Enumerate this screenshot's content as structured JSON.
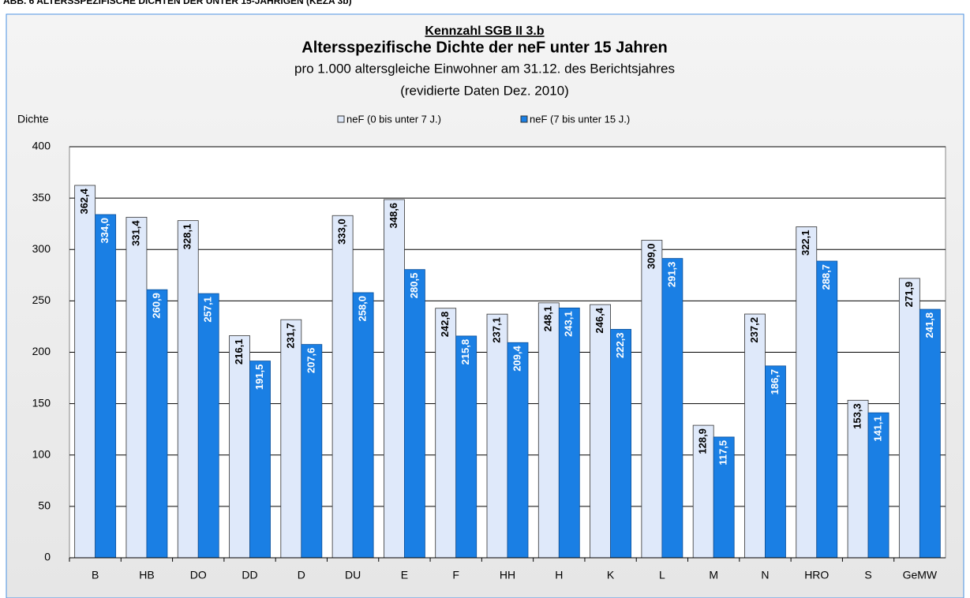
{
  "chart_data": {
    "type": "bar",
    "header": "ABB. 6 ALTERSSPEZIFISCHE DICHTEN DER UNTER 15-JÄHRIGEN (KEZA 3b)",
    "kicker": "Kennzahl SGB II 3.b",
    "title": "Altersspezifische Dichte der neF unter 15 Jahren",
    "subtitle": "pro 1.000 altersgleiche Einwohner am 31.12. des Berichtsjahres",
    "note": "(revidierte Daten Dez. 2010)",
    "y_label": "Dichte",
    "categories": [
      "B",
      "HB",
      "DO",
      "DD",
      "D",
      "DU",
      "E",
      "F",
      "HH",
      "H",
      "K",
      "L",
      "M",
      "N",
      "HRO",
      "S",
      "GeMW"
    ],
    "series": [
      {
        "name": "neF (0 bis unter 7 J.)",
        "color": "#dfe9fa",
        "values": [
          362.4,
          331.4,
          328.1,
          216.1,
          231.7,
          333.0,
          348.6,
          242.8,
          237.1,
          248.1,
          246.4,
          309.0,
          128.9,
          237.2,
          322.1,
          153.3,
          271.9
        ],
        "value_labels": [
          "362,4",
          "331,4",
          "328,1",
          "216,1",
          "231,7",
          "333,0",
          "348,6",
          "242,8",
          "237,1",
          "248,1",
          "246,4",
          "309,0",
          "128,9",
          "237,2",
          "322,1",
          "153,3",
          "271,9"
        ]
      },
      {
        "name": "neF (7 bis unter 15 J.)",
        "color": "#1a7fe4",
        "values": [
          334.0,
          260.9,
          257.1,
          191.5,
          207.6,
          258.0,
          280.5,
          215.8,
          209.4,
          243.1,
          222.3,
          291.3,
          117.5,
          186.7,
          288.7,
          141.1,
          241.8
        ],
        "value_labels": [
          "334,0",
          "260,9",
          "257,1",
          "191,5",
          "207,6",
          "258,0",
          "280,5",
          "215,8",
          "209,4",
          "243,1",
          "222,3",
          "291,3",
          "117,5",
          "186,7",
          "288,7",
          "141,1",
          "241,8"
        ]
      }
    ],
    "ylim": [
      0,
      400
    ],
    "yticks": [
      0,
      50,
      100,
      150,
      200,
      250,
      300,
      350,
      400
    ],
    "grid": true
  }
}
